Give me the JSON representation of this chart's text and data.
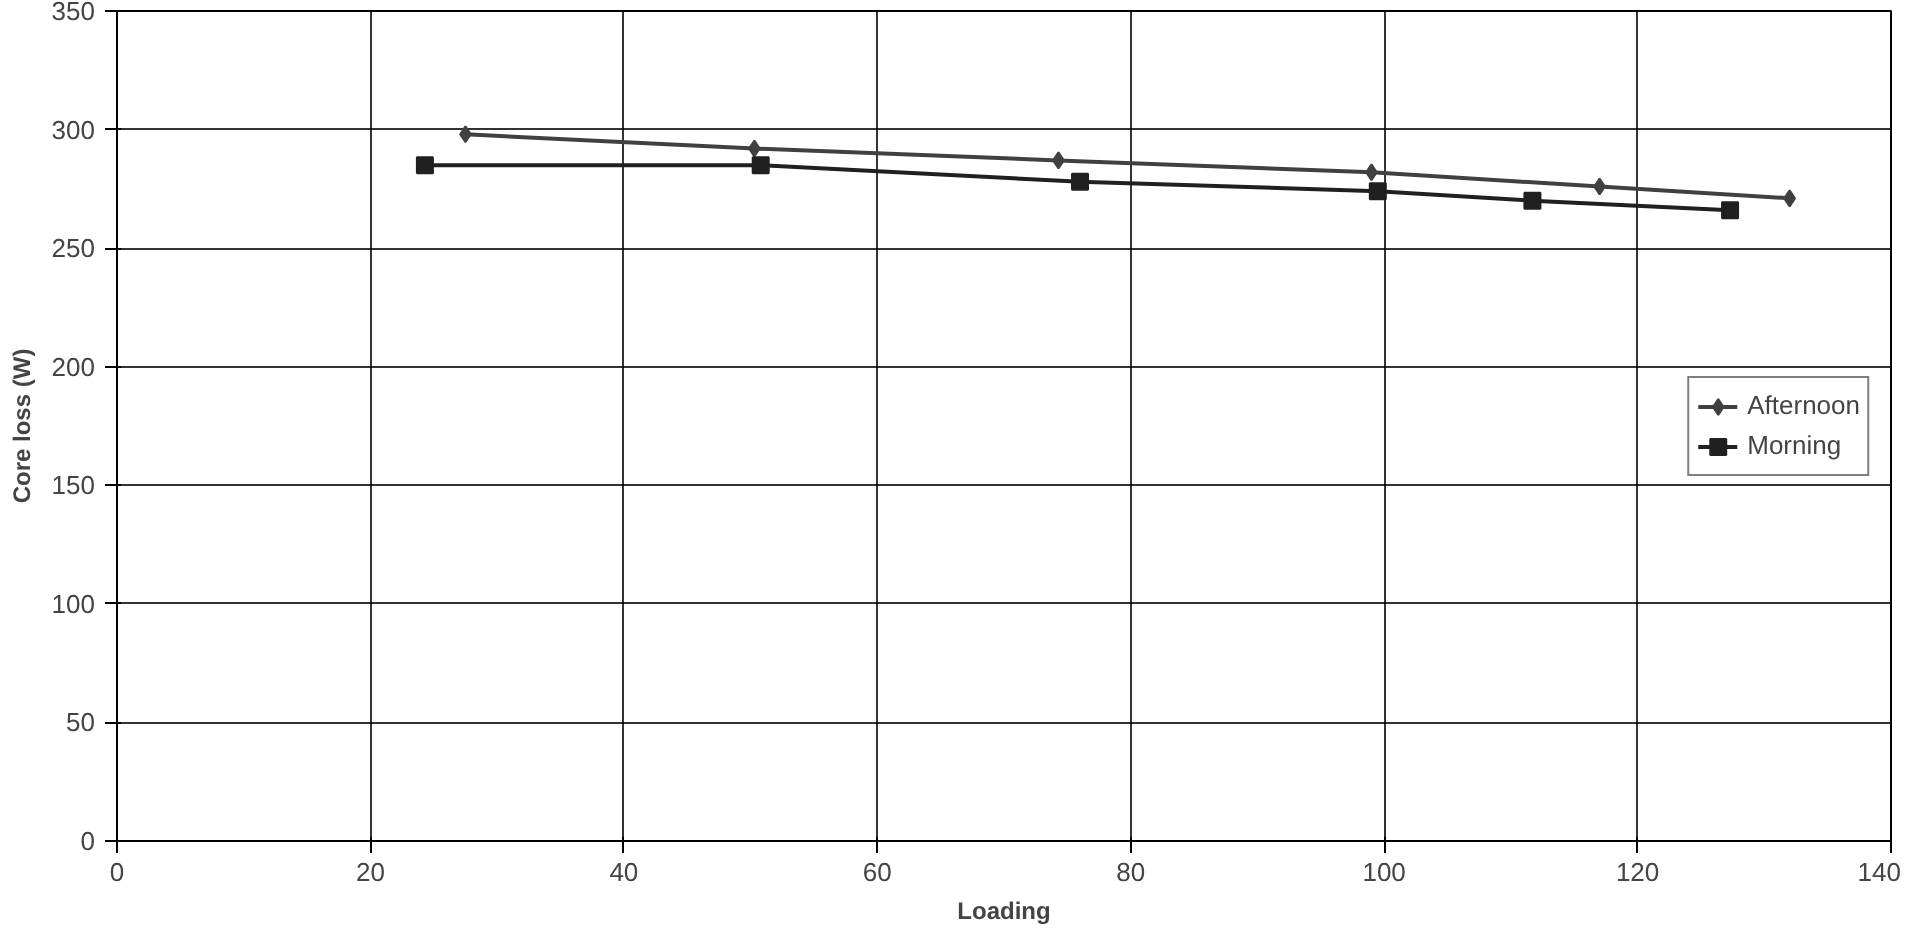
{
  "chart_data": {
    "type": "line",
    "xlabel": "Loading",
    "ylabel": "Core loss (W)",
    "xlim": [
      0,
      140
    ],
    "xticks": [
      {
        "value": 0,
        "label": "0"
      },
      20,
      40,
      60,
      80,
      100,
      120,
      140
    ],
    "ylim": [
      0,
      350
    ],
    "yticks": [
      0,
      50,
      100,
      150,
      200,
      250,
      300,
      350
    ],
    "grid": true,
    "legend": "right",
    "line_style": "solid",
    "series": [
      {
        "name": "Afternoon",
        "color": "#404040",
        "marker": "diamond",
        "x": [
          27.5,
          50.3,
          74.3,
          99,
          117,
          132
        ],
        "values": [
          298,
          292,
          287,
          282,
          276,
          271
        ]
      },
      {
        "name": "Morning",
        "color": "#202020",
        "marker": "square",
        "x": [
          24.3,
          50.8,
          76,
          99.5,
          111.7,
          127.3
        ],
        "values": [
          285,
          285,
          278,
          274,
          270,
          266
        ]
      }
    ]
  }
}
